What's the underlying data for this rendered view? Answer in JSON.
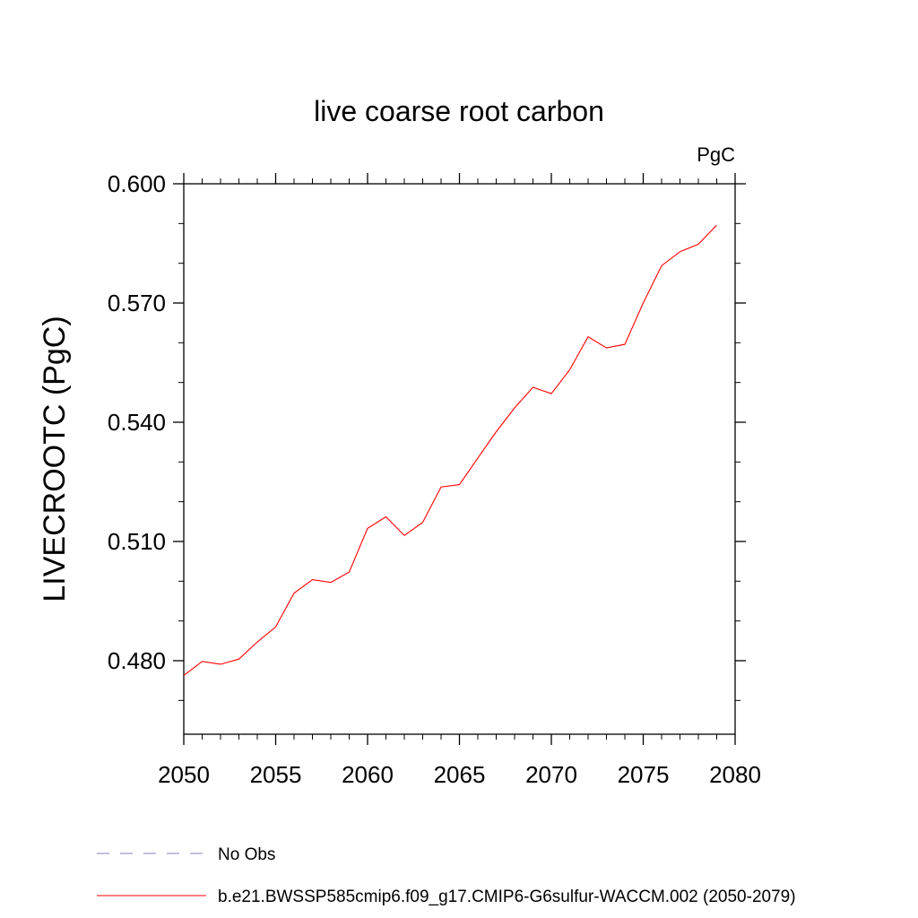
{
  "chart_data": {
    "type": "line",
    "title": "live coarse root carbon",
    "units_label": "PgC",
    "ylabel": "LIVECROOTC  (PgC)",
    "xlabel": "",
    "xlim": [
      2050,
      2080
    ],
    "ylim": [
      0.4615,
      0.6
    ],
    "x_ticks": [
      "2050",
      "2055",
      "2060",
      "2065",
      "2070",
      "2075",
      "2080"
    ],
    "y_ticks": [
      "0.480",
      "0.510",
      "0.540",
      "0.570",
      "0.600"
    ],
    "grid": false,
    "legend_position": "bottom",
    "series": [
      {
        "name": "b.e21.BWSSP585cmip6.f09_g17.CMIP6-G6sulfur-WACCM.002 (2050-2079)",
        "color": "#ff0000",
        "style": "solid",
        "x": [
          2050,
          2051,
          2052,
          2053,
          2054,
          2055,
          2056,
          2057,
          2058,
          2059,
          2060,
          2061,
          2062,
          2063,
          2064,
          2065,
          2066,
          2067,
          2068,
          2069,
          2070,
          2071,
          2072,
          2073,
          2074,
          2075,
          2076,
          2077,
          2078,
          2079
        ],
        "values": [
          0.4763,
          0.4798,
          0.4791,
          0.4804,
          0.4847,
          0.4885,
          0.497,
          0.5004,
          0.4997,
          0.5023,
          0.5133,
          0.5162,
          0.5115,
          0.5148,
          0.5237,
          0.5243,
          0.531,
          0.5376,
          0.5436,
          0.5488,
          0.5472,
          0.5532,
          0.5615,
          0.5587,
          0.5596,
          0.57,
          0.5794,
          0.5829,
          0.5848,
          0.5896
        ]
      },
      {
        "name": "No Obs",
        "color": "#8a7fc0",
        "style": "dashed",
        "x": [],
        "values": []
      }
    ]
  }
}
